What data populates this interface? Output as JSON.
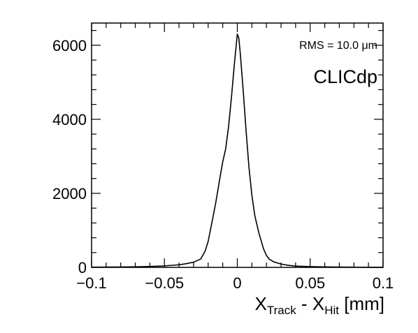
{
  "chart_data": {
    "type": "line",
    "title": "",
    "xlabel": {
      "parts": [
        {
          "text": "X",
          "sub": false
        },
        {
          "text": "Track",
          "sub": true
        },
        {
          "text": " - X",
          "sub": false
        },
        {
          "text": "Hit",
          "sub": true
        },
        {
          "text": " [mm]",
          "sub": false
        }
      ]
    },
    "ylabel": "",
    "xlim": [
      -0.1,
      0.1
    ],
    "ylim": [
      0,
      6600
    ],
    "x_ticks": [
      -0.1,
      -0.05,
      0,
      0.05,
      0.1
    ],
    "x_tick_labels": [
      "−0.1",
      "−0.05",
      "0",
      "0.05",
      "0.1"
    ],
    "y_ticks": [
      0,
      2000,
      4000,
      6000
    ],
    "y_tick_labels": [
      "0",
      "2000",
      "4000",
      "6000"
    ],
    "grid": false,
    "annotations": {
      "rms": "RMS = 10.0 μm",
      "label": "CLICdp"
    },
    "series": [
      {
        "x": [
          -0.1,
          -0.09,
          -0.08,
          -0.07,
          -0.06,
          -0.05,
          -0.04,
          -0.035,
          -0.03,
          -0.025,
          -0.022,
          -0.02,
          -0.018,
          -0.015,
          -0.012,
          -0.01,
          -0.008,
          -0.006,
          -0.004,
          -0.002,
          0.0,
          0.001,
          0.002,
          0.004,
          0.006,
          0.008,
          0.01,
          0.012,
          0.015,
          0.018,
          0.02,
          0.022,
          0.025,
          0.03,
          0.035,
          0.04,
          0.05,
          0.06,
          0.07,
          0.08,
          0.09,
          0.1
        ],
        "y": [
          5,
          8,
          10,
          15,
          25,
          40,
          70,
          100,
          140,
          230,
          450,
          700,
          1100,
          1700,
          2400,
          2850,
          3200,
          3800,
          4600,
          5500,
          6300,
          6200,
          5800,
          4800,
          3700,
          2700,
          1950,
          1400,
          900,
          500,
          320,
          220,
          150,
          90,
          55,
          35,
          20,
          12,
          8,
          5,
          3,
          2
        ]
      }
    ]
  }
}
